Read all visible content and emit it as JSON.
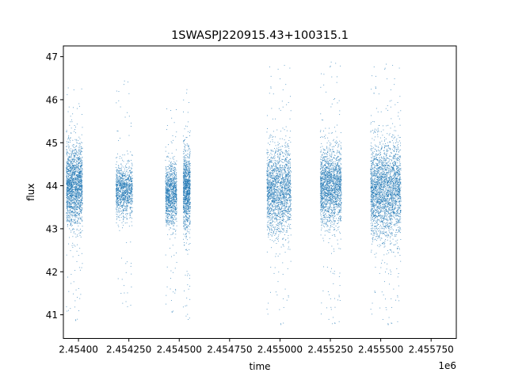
{
  "chart_data": {
    "type": "scatter",
    "title": "1SWASPJ220915.43+100315.1",
    "xlabel": "time",
    "ylabel": "flux",
    "x_offset_label": "1e6",
    "xlim": [
      2453925,
      2455875
    ],
    "ylim": [
      40.45,
      47.25
    ],
    "x_ticks": [
      2454000,
      2454250,
      2454500,
      2454750,
      2455000,
      2455250,
      2455500,
      2455750
    ],
    "x_tick_labels": [
      "2.45400",
      "2.454250",
      "2.454500",
      "2.454750",
      "2.455000",
      "2.455250",
      "2.455500",
      "2.455750"
    ],
    "y_ticks": [
      41,
      42,
      43,
      44,
      45,
      46,
      47
    ],
    "y_tick_labels": [
      "41",
      "42",
      "43",
      "44",
      "45",
      "46",
      "47"
    ],
    "grid": false,
    "marker_color": "#1f77b4",
    "clusters": [
      {
        "x_range": [
          2453940,
          2454020
        ],
        "flux_center": 44.0,
        "flux_spread": 0.45,
        "flux_min": 40.8,
        "flux_max": 46.4,
        "density": "high"
      },
      {
        "x_range": [
          2454186,
          2454268
        ],
        "flux_center": 43.9,
        "flux_spread": 0.3,
        "flux_min": 41.1,
        "flux_max": 46.5,
        "density": "medium"
      },
      {
        "x_range": [
          2454432,
          2454488
        ],
        "flux_center": 43.8,
        "flux_spread": 0.35,
        "flux_min": 41.0,
        "flux_max": 45.9,
        "density": "medium"
      },
      {
        "x_range": [
          2454520,
          2454555
        ],
        "flux_center": 43.9,
        "flux_spread": 0.45,
        "flux_min": 40.8,
        "flux_max": 46.3,
        "density": "medium"
      },
      {
        "x_range": [
          2454935,
          2455055
        ],
        "flux_center": 43.9,
        "flux_spread": 0.5,
        "flux_min": 40.7,
        "flux_max": 46.9,
        "density": "high"
      },
      {
        "x_range": [
          2455200,
          2455305
        ],
        "flux_center": 44.0,
        "flux_spread": 0.45,
        "flux_min": 40.7,
        "flux_max": 46.95,
        "density": "high"
      },
      {
        "x_range": [
          2455450,
          2455600
        ],
        "flux_center": 43.9,
        "flux_spread": 0.55,
        "flux_min": 40.7,
        "flux_max": 46.9,
        "density": "very-high"
      }
    ]
  }
}
